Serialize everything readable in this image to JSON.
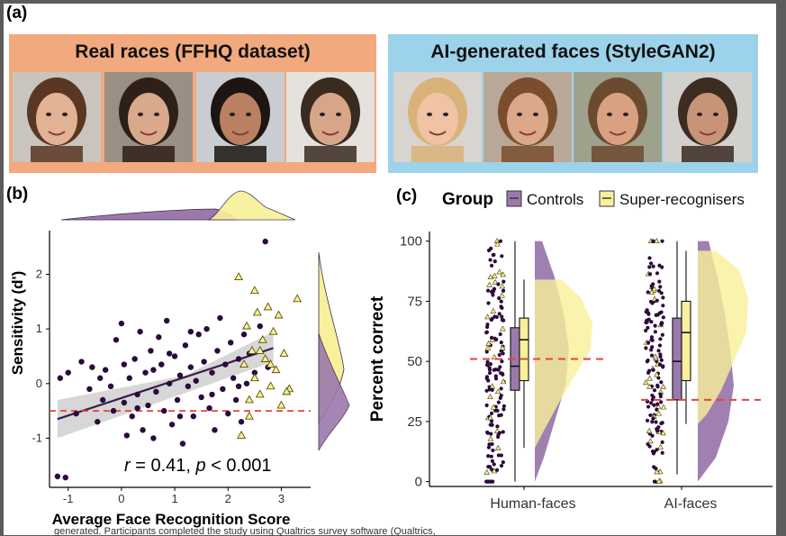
{
  "panel_a": {
    "label": "(a)",
    "real": {
      "title": "Real races (FFHQ dataset)",
      "bg": "#f2a97e"
    },
    "ai": {
      "title": "AI-generated faces (StyleGAN2)",
      "bg": "#9dd3ea"
    },
    "faces": [
      {
        "name": "face-real-1",
        "skin": "#e2b295",
        "hair": "#5a3624",
        "bg": "#c9c4be"
      },
      {
        "name": "face-real-2",
        "skin": "#d9a98b",
        "hair": "#2e1f18",
        "bg": "#9a8f84"
      },
      {
        "name": "face-real-3",
        "skin": "#b98064",
        "hair": "#1c1512",
        "bg": "#c9cdd1"
      },
      {
        "name": "face-real-4",
        "skin": "#d7a688",
        "hair": "#3a2a20",
        "bg": "#e5e2dd"
      },
      {
        "name": "face-ai-1",
        "skin": "#efc3a3",
        "hair": "#d9b27a",
        "bg": "#d8d4cf"
      },
      {
        "name": "face-ai-2",
        "skin": "#dca88a",
        "hair": "#7a4e2c",
        "bg": "#b9a898"
      },
      {
        "name": "face-ai-3",
        "skin": "#d7a182",
        "hair": "#6b4a30",
        "bg": "#9ea28c"
      },
      {
        "name": "face-ai-4",
        "skin": "#c89478",
        "hair": "#3c2c22",
        "bg": "#d2d0cc"
      }
    ]
  },
  "panel_b": {
    "label": "(b)",
    "stat_r": "r",
    "stat_mid": " = 0.41, ",
    "stat_p": "p",
    "stat_end": " < 0.001"
  },
  "panel_c": {
    "label": "(c)"
  },
  "colors": {
    "controls": "#9b79ad",
    "controls_point": "#2b0a3d",
    "super": "#f8f09a",
    "super_edge": "#b8a200",
    "fit_line": "#3a1a4f",
    "ref_line": "#e8413a"
  },
  "caption": "generated. Participants completed the study using Qualtrics survey software (Qualtrics,",
  "chart_data": [
    {
      "type": "scatter",
      "title": "",
      "xlabel": "Average Face Recognition Score",
      "ylabel": "Sensitivity (d')",
      "xlim": [
        -1.35,
        3.55
      ],
      "ylim": [
        -1.9,
        2.8
      ],
      "xticks": [
        -1,
        0,
        1,
        2,
        3
      ],
      "yticks": [
        -1,
        0,
        1,
        2
      ],
      "grid": false,
      "reference_line_y": -0.5,
      "fit": {
        "x0": -1.2,
        "y0": -0.65,
        "x1": 2.85,
        "y1": 0.65
      },
      "series": [
        {
          "name": "Controls",
          "marker": "circle",
          "points": [
            [
              -1.2,
              -1.7
            ],
            [
              -1.05,
              -1.72
            ],
            [
              -1.15,
              0.1
            ],
            [
              -1.0,
              0.2
            ],
            [
              -0.85,
              -0.55
            ],
            [
              -0.75,
              0.4
            ],
            [
              -0.6,
              -0.1
            ],
            [
              -0.55,
              0.3
            ],
            [
              -0.45,
              -0.7
            ],
            [
              -0.35,
              -0.3
            ],
            [
              -0.3,
              0.25
            ],
            [
              -0.2,
              -0.05
            ],
            [
              -0.1,
              0.8
            ],
            [
              0.0,
              1.1
            ],
            [
              0.05,
              -0.35
            ],
            [
              0.1,
              -0.95
            ],
            [
              0.15,
              0.1
            ],
            [
              0.2,
              -0.6
            ],
            [
              0.25,
              0.45
            ],
            [
              0.3,
              -0.2
            ],
            [
              0.35,
              0.95
            ],
            [
              0.4,
              -0.85
            ],
            [
              0.45,
              0.2
            ],
            [
              0.5,
              -0.4
            ],
            [
              0.55,
              0.6
            ],
            [
              0.6,
              -1.0
            ],
            [
              0.65,
              -0.15
            ],
            [
              0.7,
              0.85
            ],
            [
              0.75,
              0.35
            ],
            [
              0.8,
              -0.5
            ],
            [
              0.85,
              1.15
            ],
            [
              0.9,
              0.0
            ],
            [
              0.95,
              -0.75
            ],
            [
              1.0,
              0.5
            ],
            [
              1.05,
              -0.3
            ],
            [
              1.1,
              0.15
            ],
            [
              1.15,
              -1.1
            ],
            [
              1.2,
              0.7
            ],
            [
              1.25,
              -0.05
            ],
            [
              1.3,
              0.3
            ],
            [
              1.35,
              -0.6
            ],
            [
              1.4,
              0.05
            ],
            [
              1.45,
              0.9
            ],
            [
              1.5,
              -0.25
            ],
            [
              1.55,
              0.4
            ],
            [
              1.6,
              1.0
            ],
            [
              1.65,
              -0.45
            ],
            [
              1.7,
              0.2
            ],
            [
              1.75,
              -0.85
            ],
            [
              1.8,
              0.6
            ],
            [
              1.85,
              1.2
            ],
            [
              1.9,
              -0.1
            ],
            [
              1.95,
              0.35
            ],
            [
              2.0,
              -0.55
            ],
            [
              2.05,
              0.75
            ],
            [
              2.1,
              0.1
            ],
            [
              2.15,
              -0.3
            ],
            [
              2.2,
              0.45
            ],
            [
              2.25,
              -0.7
            ],
            [
              2.3,
              0.9
            ],
            [
              2.35,
              0.0
            ],
            [
              2.4,
              0.55
            ],
            [
              2.5,
              0.2
            ],
            [
              2.6,
              1.05
            ],
            [
              2.7,
              2.6
            ],
            [
              2.75,
              0.3
            ],
            [
              0.3,
              -0.45
            ],
            [
              0.9,
              0.55
            ],
            [
              1.3,
              0.95
            ],
            [
              -0.4,
              0.1
            ],
            [
              0.6,
              0.25
            ],
            [
              1.7,
              -0.2
            ],
            [
              2.2,
              -0.05
            ],
            [
              1.1,
              -0.6
            ],
            [
              0.05,
              0.35
            ],
            [
              -0.15,
              -0.5
            ]
          ]
        },
        {
          "name": "Super-recognisers",
          "marker": "triangle",
          "points": [
            [
              2.2,
              1.95
            ],
            [
              2.3,
              0.35
            ],
            [
              2.35,
              1.05
            ],
            [
              2.4,
              -0.6
            ],
            [
              2.45,
              0.6
            ],
            [
              2.5,
              0.1
            ],
            [
              2.55,
              1.3
            ],
            [
              2.6,
              -0.2
            ],
            [
              2.65,
              0.8
            ],
            [
              2.7,
              0.45
            ],
            [
              2.75,
              1.4
            ],
            [
              2.8,
              -0.05
            ],
            [
              2.85,
              0.95
            ],
            [
              2.9,
              0.25
            ],
            [
              2.95,
              1.25
            ],
            [
              3.0,
              -0.4
            ],
            [
              3.05,
              0.55
            ],
            [
              3.15,
              -0.1
            ],
            [
              3.3,
              1.55
            ],
            [
              2.25,
              -0.95
            ],
            [
              2.5,
              1.7
            ],
            [
              2.6,
              0.6
            ],
            [
              2.8,
              0.35
            ],
            [
              2.4,
              -0.3
            ],
            [
              3.1,
              -0.15
            ]
          ]
        }
      ],
      "marginal_x": "density, Controls and Super-recognisers",
      "marginal_y": "density, Controls and Super-recognisers"
    },
    {
      "type": "raincloud",
      "title": "",
      "xlabel": "",
      "ylabel": "Percent correct",
      "ylim": [
        -2,
        104
      ],
      "yticks": [
        0,
        25,
        50,
        75,
        100
      ],
      "categories": [
        "Human-faces",
        "AI-faces"
      ],
      "legend_title": "Group",
      "legend_placement": "top",
      "series": [
        {
          "name": "Controls",
          "box": [
            {
              "min": 0,
              "q1": 38,
              "median": 48,
              "q3": 64,
              "max": 100
            },
            {
              "min": 3,
              "q1": 34,
              "median": 50,
              "q3": 68,
              "max": 100
            }
          ]
        },
        {
          "name": "Super-recognisers",
          "box": [
            {
              "min": 14,
              "q1": 42,
              "median": 59,
              "q3": 68,
              "max": 84
            },
            {
              "min": 24,
              "q1": 42,
              "median": 62,
              "q3": 75,
              "max": 96
            }
          ]
        }
      ],
      "chance_lines": [
        51,
        34
      ]
    }
  ]
}
